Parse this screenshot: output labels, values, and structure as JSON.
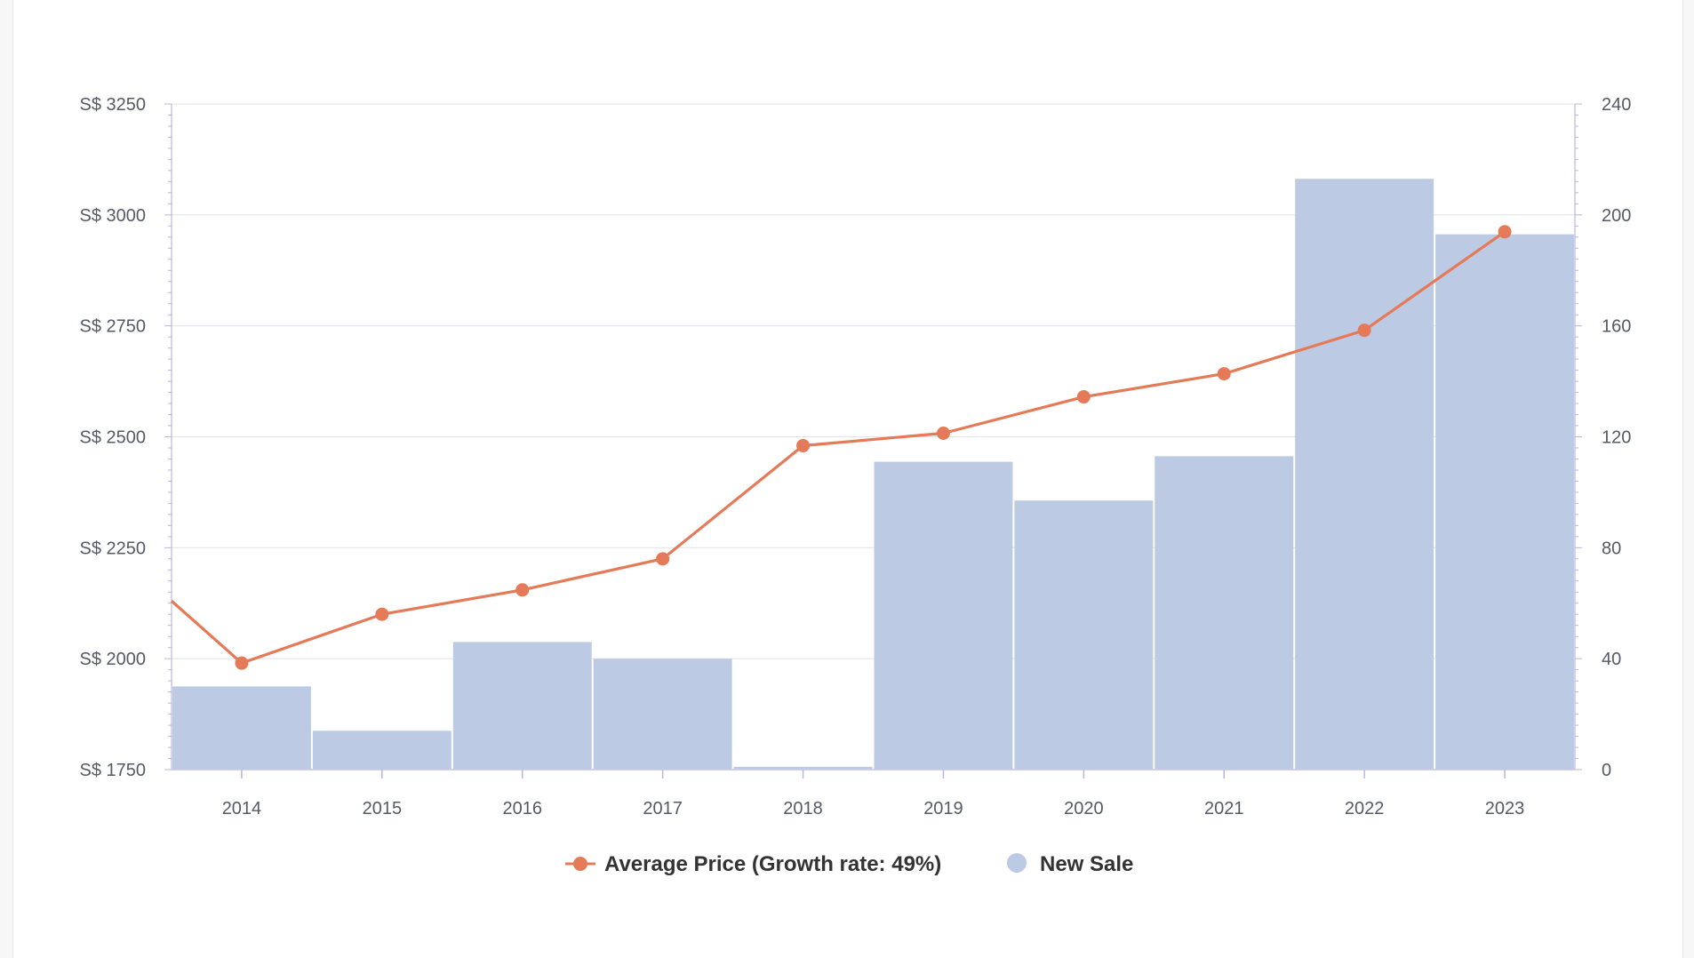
{
  "chart_data": {
    "type": "bar",
    "categories": [
      "2014",
      "2015",
      "2016",
      "2017",
      "2018",
      "2019",
      "2020",
      "2021",
      "2022",
      "2023"
    ],
    "y_left": {
      "ticks": [
        "S$ 1750",
        "S$ 2000",
        "S$ 2250",
        "S$ 2500",
        "S$ 2750",
        "S$ 3000",
        "S$ 3250"
      ],
      "ylim": [
        1750,
        3250
      ]
    },
    "y_right": {
      "ticks": [
        "0",
        "40",
        "80",
        "120",
        "160",
        "200",
        "240"
      ],
      "ylim": [
        0,
        240
      ]
    },
    "series": [
      {
        "name": "Average Price (Growth rate: 49%)",
        "type": "line",
        "axis": "left",
        "color": "#e57a58",
        "values": [
          1990,
          2100,
          2155,
          2225,
          2480,
          2508,
          2590,
          2642,
          2740,
          2962
        ],
        "lead_in_value": 2130
      },
      {
        "name": "New Sale",
        "type": "bar",
        "axis": "right",
        "color": "#bccbe3",
        "values": [
          30,
          14,
          46,
          40,
          1,
          111,
          97,
          113,
          213,
          193
        ]
      }
    ],
    "grid": true,
    "legend_position": "bottom-center"
  },
  "legend": {
    "line_label": "Average Price (Growth rate: 49%)",
    "bar_label": "New Sale"
  }
}
